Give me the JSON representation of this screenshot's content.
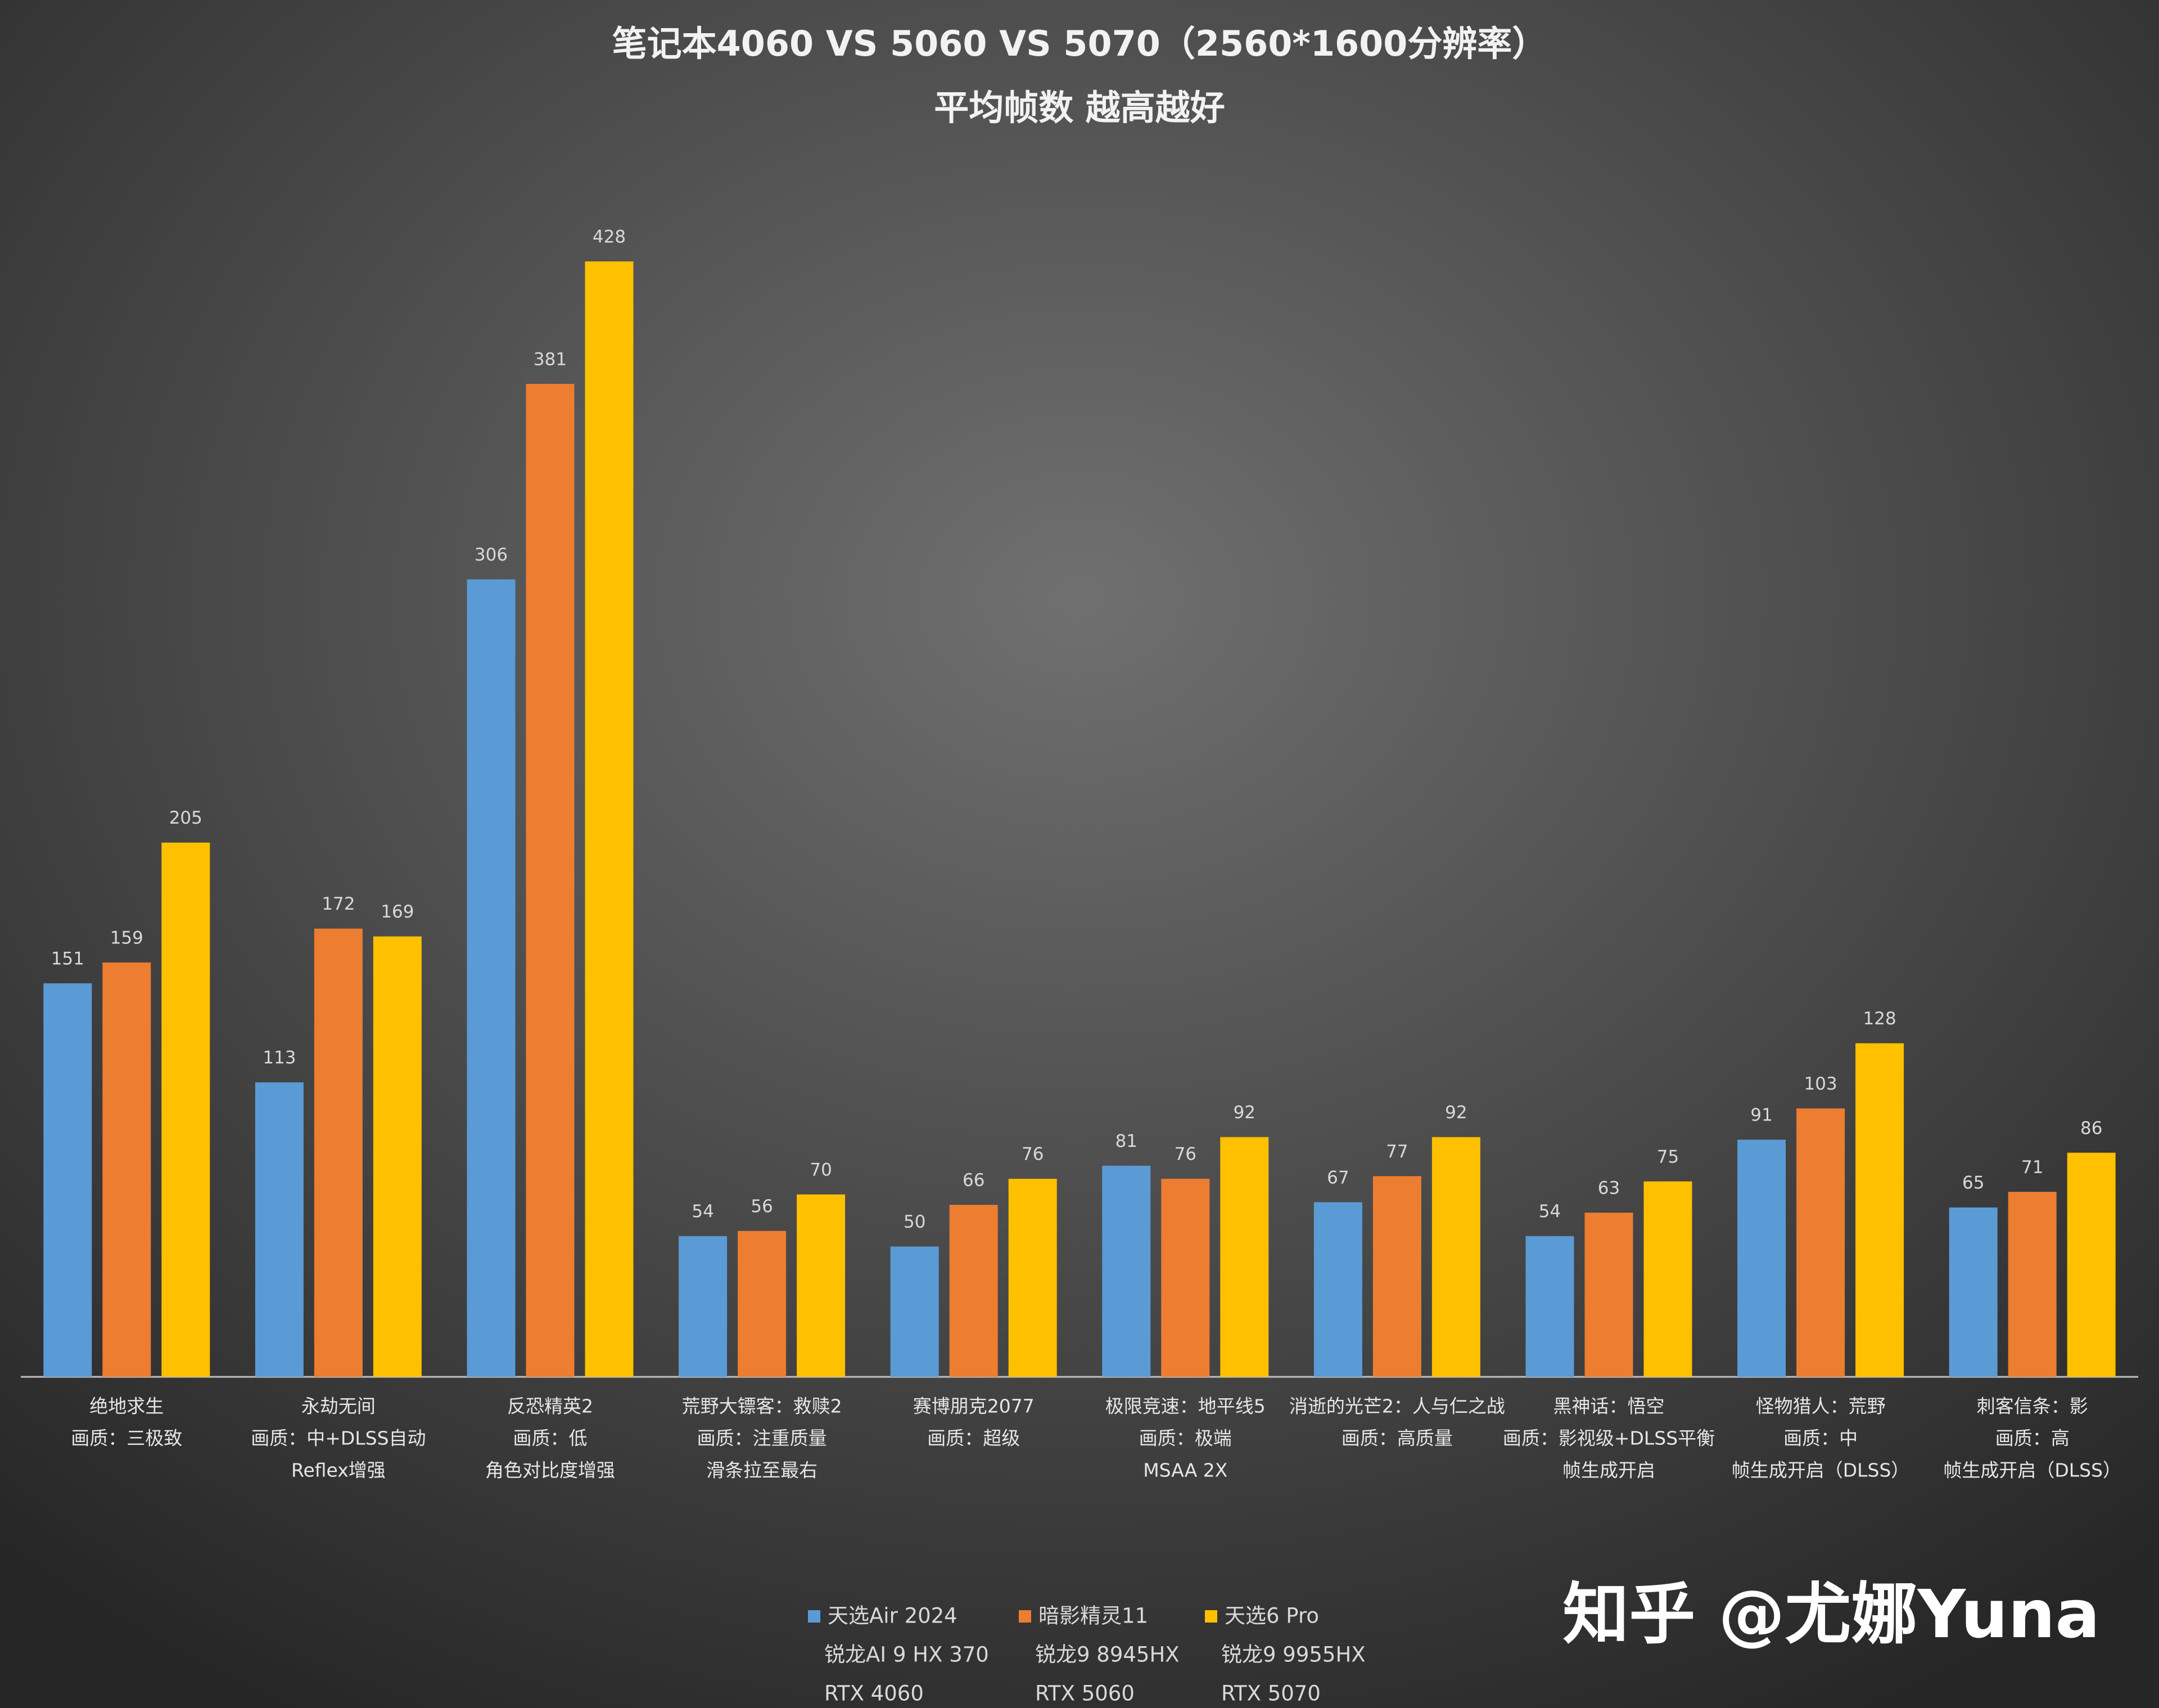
{
  "chart_data": {
    "type": "bar",
    "title": "笔记本4060 VS 5060 VS 5070（2560*1600分辨率）",
    "subtitle": "平均帧数 越高越好",
    "categories": [
      [
        "绝地求生",
        "画质：三极致"
      ],
      [
        "永劫无间",
        "画质：中+DLSS自动",
        "Reflex增强"
      ],
      [
        "反恐精英2",
        "画质：低",
        "角色对比度增强"
      ],
      [
        "荒野大镖客：救赎2",
        "画质：注重质量",
        "滑条拉至最右"
      ],
      [
        "赛博朋克2077",
        "画质：超级"
      ],
      [
        "极限竞速：地平线5",
        "画质：极端",
        "MSAA 2X"
      ],
      [
        "消逝的光芒2：人与仁之战",
        "画质：高质量"
      ],
      [
        "黑神话：悟空",
        "画质：影视级+DLSS平衡",
        "帧生成开启"
      ],
      [
        "怪物猎人：荒野",
        "画质：中",
        "帧生成开启（DLSS）"
      ],
      [
        "刺客信条：影",
        "画质：高",
        "帧生成开启（DLSS）"
      ]
    ],
    "series": [
      {
        "name": [
          "天选Air 2024",
          "锐龙AI 9 HX 370",
          "RTX 4060"
        ],
        "color": "#5b9bd5",
        "values": [
          151,
          113,
          306,
          54,
          50,
          81,
          67,
          54,
          91,
          65
        ]
      },
      {
        "name": [
          "暗影精灵11",
          "锐龙9 8945HX",
          "RTX 5060"
        ],
        "color": "#ed7d31",
        "values": [
          159,
          172,
          381,
          56,
          66,
          76,
          77,
          63,
          103,
          71
        ]
      },
      {
        "name": [
          "天选6 Pro",
          "锐龙9 9955HX",
          "RTX 5070"
        ],
        "color": "#ffc000",
        "values": [
          205,
          169,
          428,
          70,
          76,
          92,
          92,
          75,
          128,
          86
        ]
      }
    ],
    "ylim": [
      0,
      450
    ],
    "watermark": "知乎 @尤娜Yuna"
  }
}
